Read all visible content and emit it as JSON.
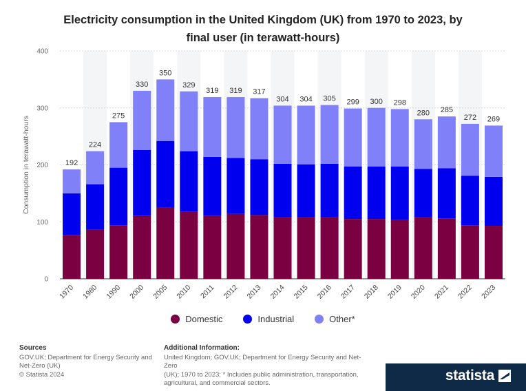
{
  "title_line1": "Electricity consumption in the United Kingdom (UK) from 1970 to 2023, by",
  "title_line2": "final user (in terawatt-hours)",
  "chart_data": {
    "type": "bar",
    "stacked": true,
    "categories": [
      "1970",
      "1980",
      "1990",
      "2000",
      "2005",
      "2010",
      "2011",
      "2012",
      "2013",
      "2014",
      "2015",
      "2016",
      "2017",
      "2018",
      "2019",
      "2020",
      "2021",
      "2022",
      "2023"
    ],
    "series": [
      {
        "name": "Domestic",
        "color": "#7a0041",
        "values": [
          77,
          86,
          94,
          111,
          125,
          118,
          111,
          114,
          112,
          108,
          108,
          108,
          105,
          105,
          104,
          108,
          106,
          94,
          93
        ]
      },
      {
        "name": "Industrial",
        "color": "#0000ee",
        "values": [
          73,
          80,
          101,
          115,
          117,
          106,
          103,
          98,
          98,
          94,
          93,
          94,
          92,
          92,
          93,
          85,
          88,
          87,
          86
        ]
      },
      {
        "name": "Other*",
        "color": "#8080f8",
        "values": [
          42,
          58,
          80,
          104,
          108,
          105,
          105,
          107,
          107,
          102,
          103,
          103,
          102,
          103,
          101,
          87,
          91,
          91,
          90
        ]
      }
    ],
    "totals": [
      192,
      224,
      275,
      330,
      350,
      329,
      319,
      319,
      317,
      304,
      304,
      305,
      299,
      300,
      298,
      280,
      285,
      272,
      269
    ],
    "ylabel": "Consumption in terawatt-hours",
    "xlabel": "",
    "ylim": [
      0,
      400
    ],
    "yticks": [
      0,
      100,
      200,
      300,
      400
    ],
    "grid": true,
    "legend_position": "bottom"
  },
  "sources": {
    "heading": "Sources",
    "lines": [
      "GOV.UK; Department for Energy Security and",
      "Net-Zero (UK)",
      "© Statista 2024"
    ]
  },
  "additional_info": {
    "heading": "Additional Information:",
    "lines": [
      "United Kingdom; GOV.UK; Department for Energy Security and Net-Zero",
      "(UK); 1970 to 2023; * Includes public administration, transportation,",
      "agricultural, and commercial sectors."
    ]
  },
  "brand": "statista",
  "brand_icon": "statista-logo-icon"
}
